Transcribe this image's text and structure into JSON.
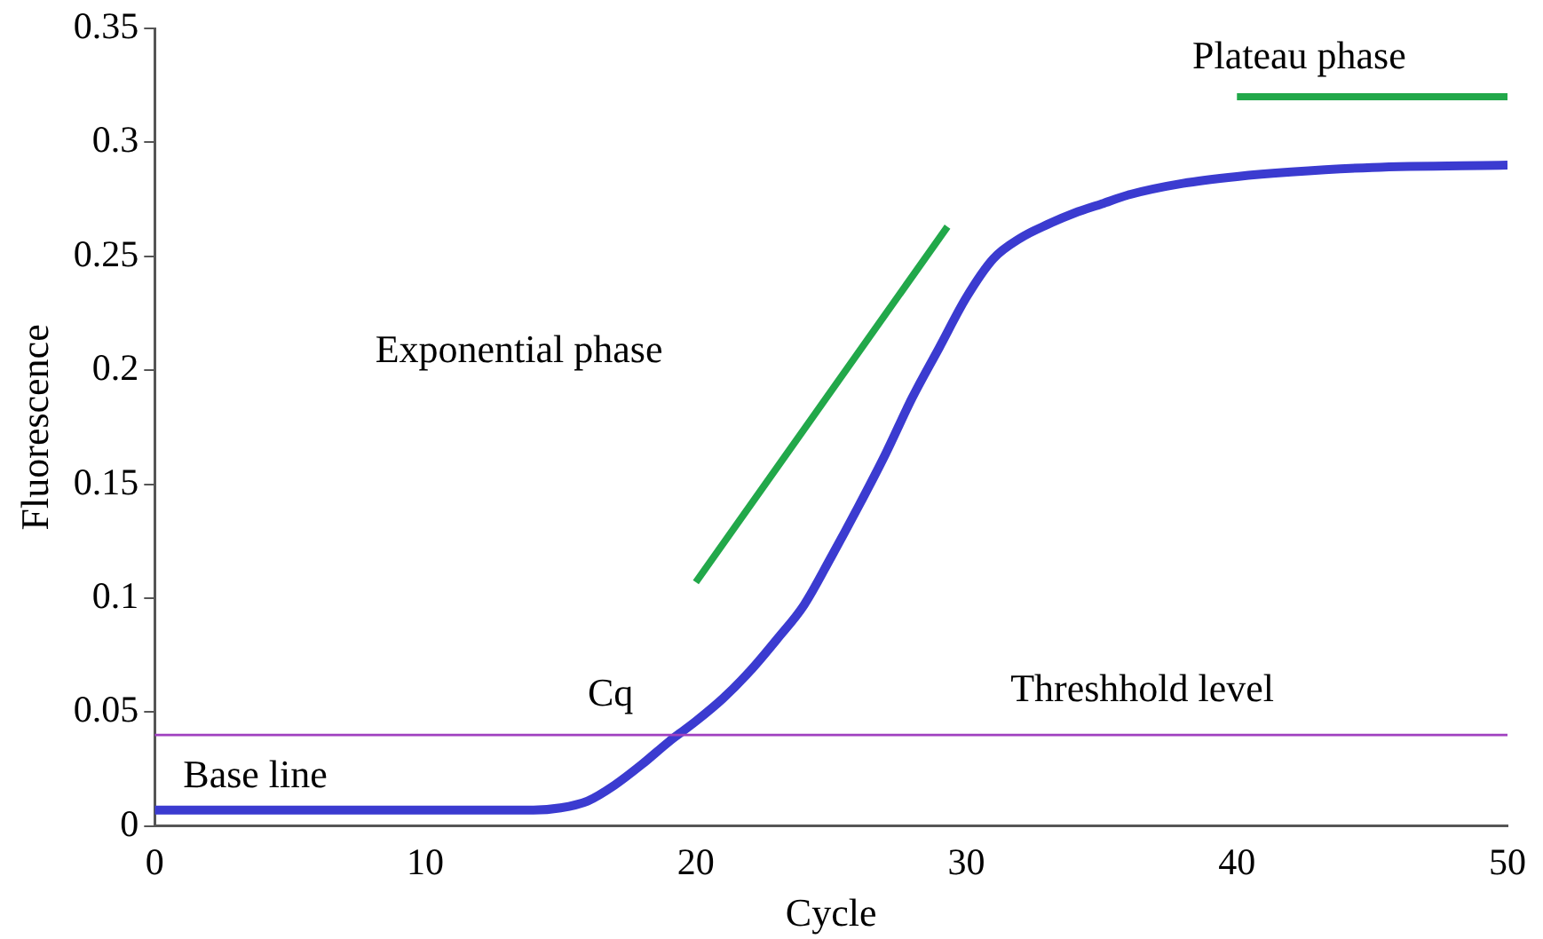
{
  "chart_data": {
    "type": "line",
    "xlabel": "Cycle",
    "ylabel": "Fluorescence",
    "xlim": [
      0,
      50
    ],
    "xticks": [
      0,
      10,
      20,
      30,
      40,
      50
    ],
    "ylim": [
      0,
      0.35
    ],
    "yticks": [
      0,
      0.05,
      0.1,
      0.15,
      0.2,
      0.25,
      0.3,
      0.35
    ],
    "grid": false,
    "legend": false,
    "marker": "none",
    "line_style": "solid",
    "series": [
      {
        "color": "#3b3bd0",
        "x": [
          0,
          5,
          10,
          14,
          15,
          16,
          17,
          18,
          19,
          20,
          21,
          22,
          23,
          24,
          25,
          26,
          27,
          28,
          29,
          30,
          31,
          32,
          33,
          34,
          35,
          36,
          38,
          40,
          42,
          45,
          50
        ],
        "values": [
          0.007,
          0.007,
          0.007,
          0.007,
          0.008,
          0.011,
          0.018,
          0.027,
          0.037,
          0.046,
          0.056,
          0.068,
          0.082,
          0.097,
          0.118,
          0.14,
          0.163,
          0.188,
          0.21,
          0.232,
          0.249,
          0.258,
          0.264,
          0.269,
          0.273,
          0.277,
          0.282,
          0.285,
          0.287,
          0.289,
          0.29
        ]
      },
      {
        "color": "#22a84a",
        "x": [
          20,
          29.3
        ],
        "values": [
          0.107,
          0.263
        ]
      },
      {
        "color": "#22a84a",
        "x": [
          40,
          50
        ],
        "values": [
          0.32,
          0.32
        ]
      }
    ],
    "ref_lines": [
      {
        "axis": "y",
        "value": 0.04,
        "label": "Threshhold level",
        "color": "#a040c0"
      }
    ],
    "annotations": [
      "Exponential phase",
      "Plateau phase",
      "Base line",
      "Cq"
    ]
  }
}
